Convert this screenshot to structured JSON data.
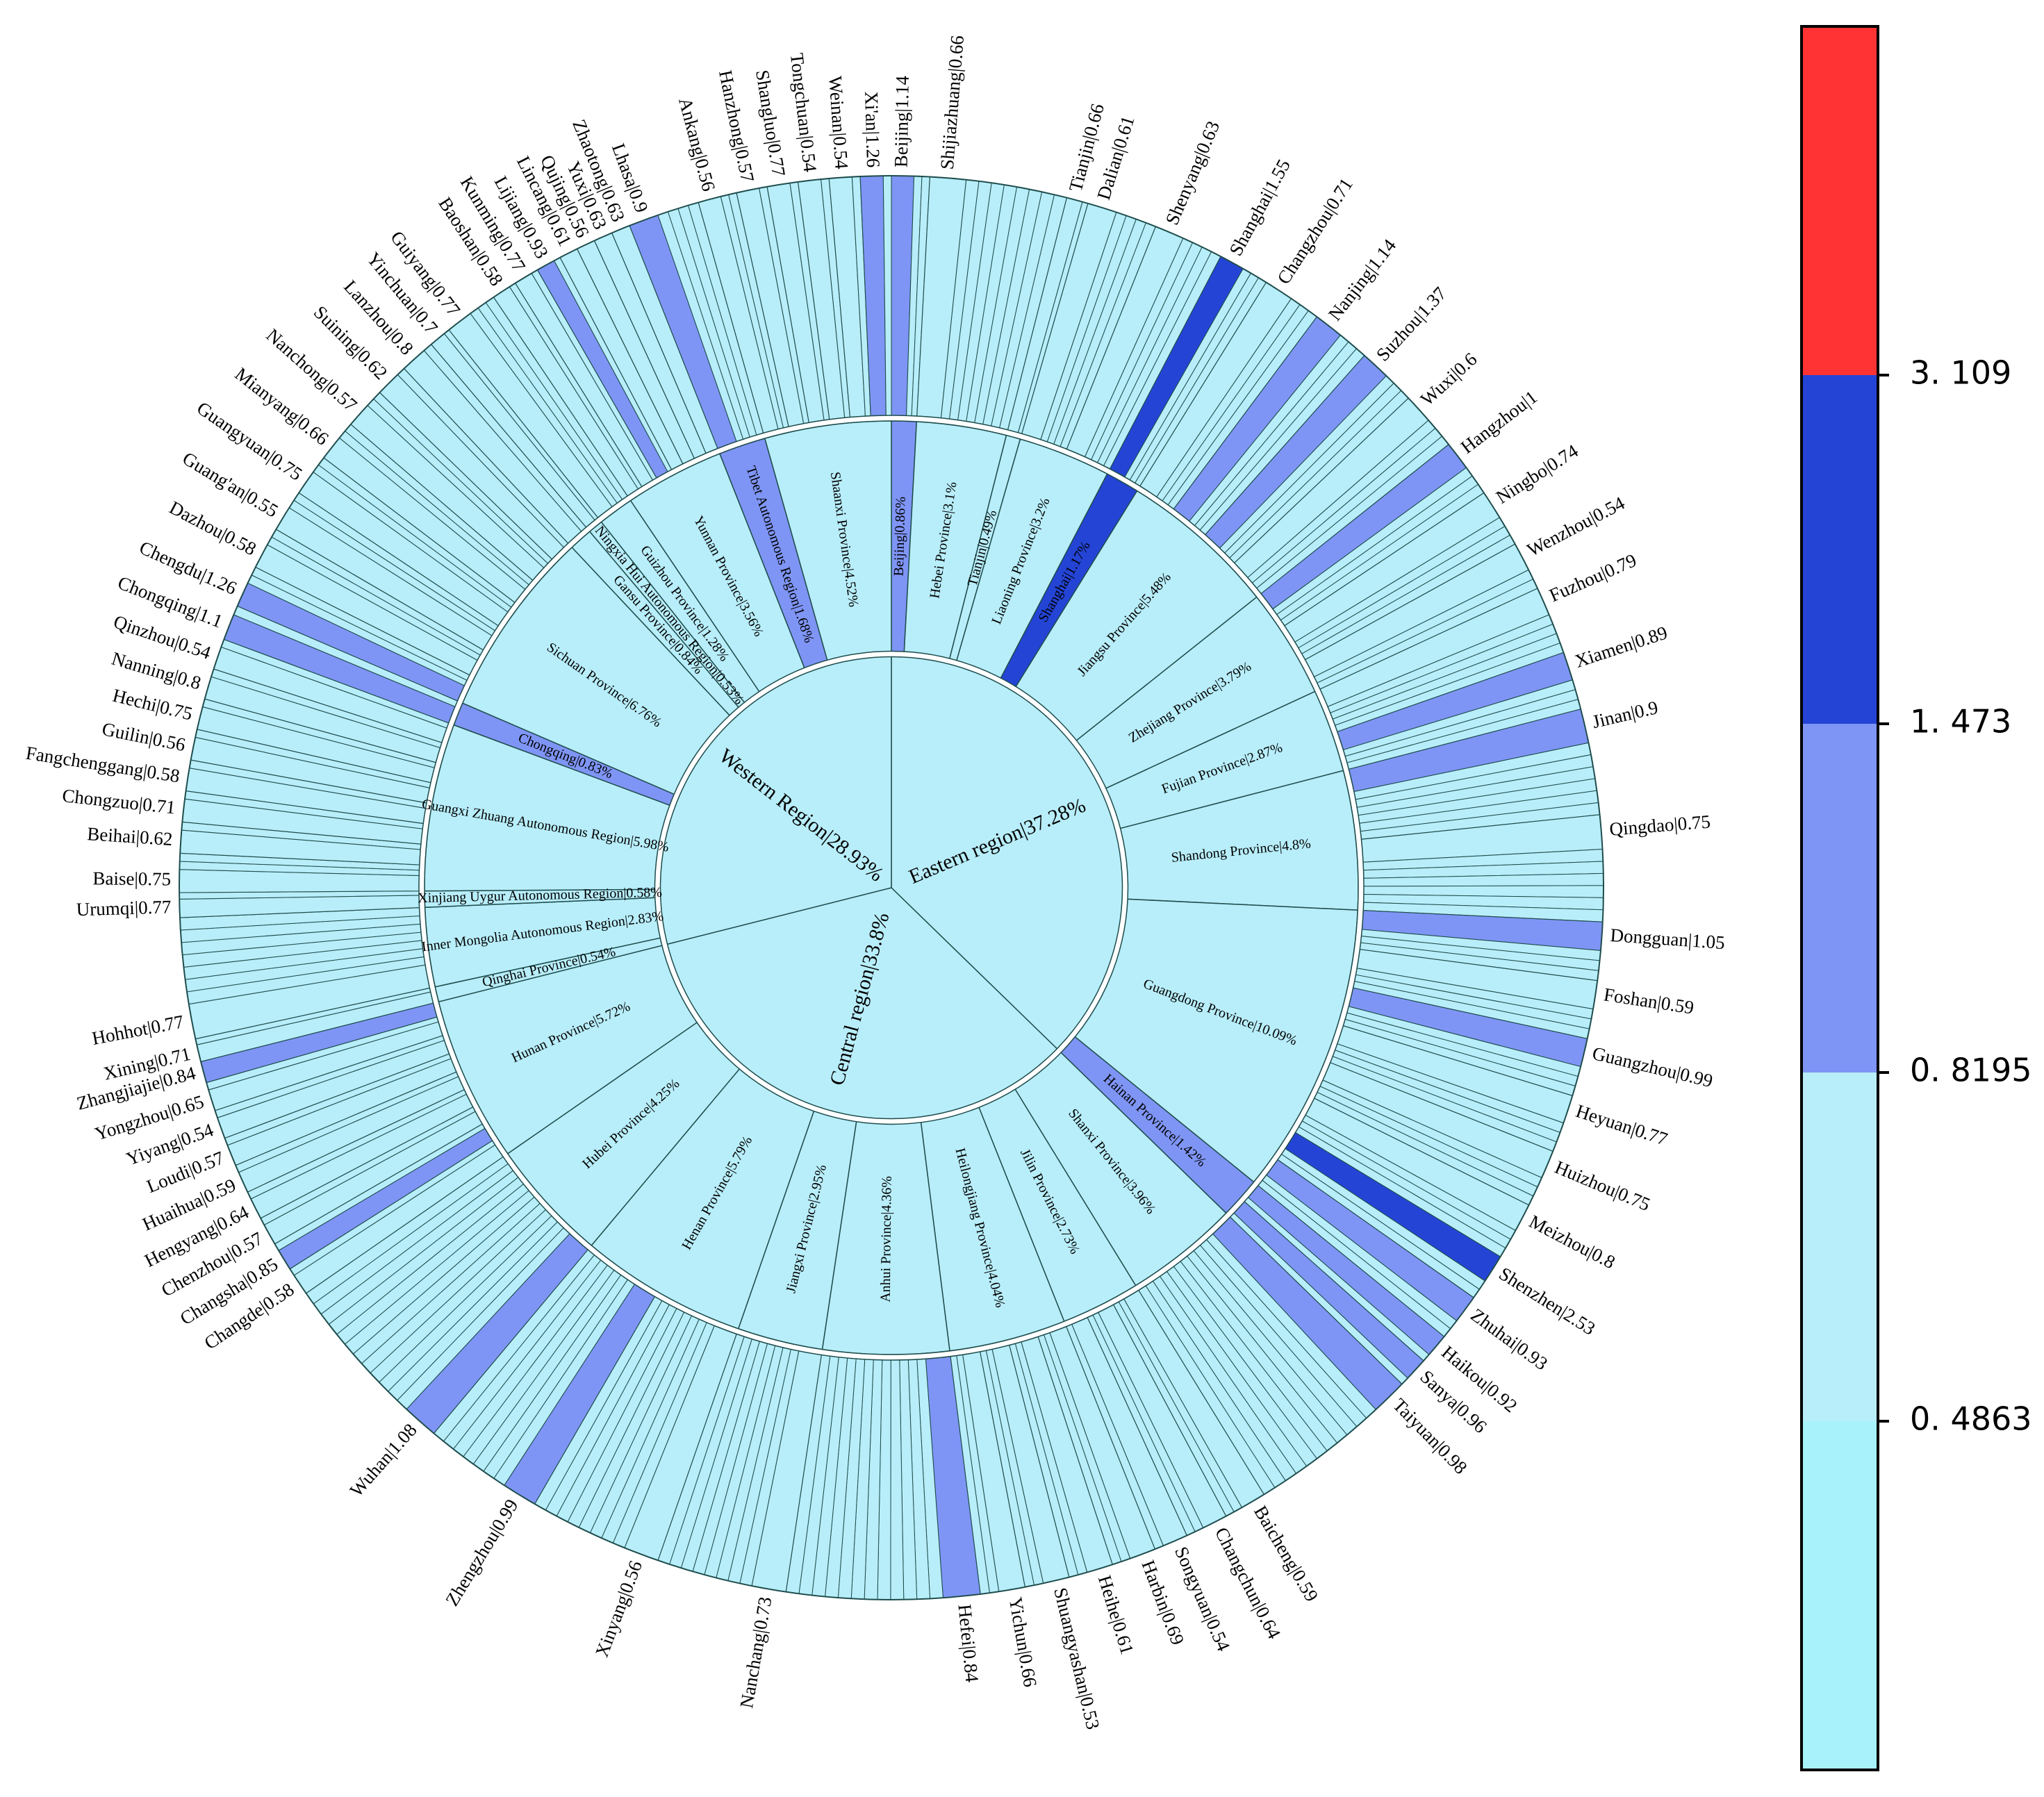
{
  "chart_data": {
    "type": "sunburst",
    "title": "",
    "colorbar": {
      "ticks": [
        0.4863,
        0.8195,
        1.473,
        3.109
      ],
      "tick_labels": [
        "0. 4863",
        "0. 8195",
        "1. 473",
        "3. 109"
      ],
      "bands": [
        {
          "from": 0.3,
          "to": 0.4863,
          "color": "#A8F3FB"
        },
        {
          "from": 0.4863,
          "to": 0.8195,
          "color": "#B8EEFA"
        },
        {
          "from": 0.8195,
          "to": 1.473,
          "color": "#7F95F5"
        },
        {
          "from": 1.473,
          "to": 3.109,
          "color": "#2444D6"
        },
        {
          "from": 3.109,
          "to": 3.6,
          "color": "#FF3333"
        }
      ]
    },
    "colors": {
      "light": "#B8EEFA",
      "cyan": "#A8F3FB",
      "mid": "#7F95F5",
      "dark": "#2444D6",
      "red": "#FF3333",
      "edge": "#1F4D4D"
    },
    "regions": [
      {
        "label": "Eastern region|37.28%",
        "share": 37.28,
        "value": 0.79,
        "provinces": [
          {
            "label": "Beijing|0.86%",
            "share": 0.86,
            "value": 1.14,
            "cities": [
              {
                "label": "Beijing|1.14",
                "value": 1.14
              }
            ]
          },
          {
            "label": "Hebei Province|3.1%",
            "share": 3.1,
            "value": 0.66,
            "cities": [
              {
                "label": "Shijiazhuang|0.66",
                "value": 0.66
              }
            ]
          },
          {
            "label": "Tianjin|0.49%",
            "share": 0.49,
            "value": 0.66,
            "cities": [
              {
                "label": "Tianjin|0.66",
                "value": 0.66
              }
            ]
          },
          {
            "label": "Liaoning Province|3.2%",
            "share": 3.2,
            "value": 0.61,
            "cities": [
              {
                "label": "Dalian|0.61",
                "value": 0.61
              },
              {
                "label": "Shenyang|0.63",
                "value": 0.63
              }
            ]
          },
          {
            "label": "Shanghai|1.17%",
            "share": 1.17,
            "value": 1.55,
            "cities": [
              {
                "label": "Shanghai|1.55",
                "value": 1.55
              }
            ]
          },
          {
            "label": "Jiangsu  Province|5.48%",
            "share": 5.48,
            "value": 0.75,
            "cities": [
              {
                "label": "Changzhou|0.71",
                "value": 0.71
              },
              {
                "label": "Nanjing|1.14",
                "value": 1.14
              },
              {
                "label": "Suzhou|1.37",
                "value": 1.37
              },
              {
                "label": "Wuxi|0.6",
                "value": 0.6
              }
            ]
          },
          {
            "label": "Zhejiang Province|3.79%",
            "share": 3.79,
            "value": 0.75,
            "cities": [
              {
                "label": "Hangzhou|1",
                "value": 1.0
              },
              {
                "label": "Ningbo|0.74",
                "value": 0.74
              },
              {
                "label": "Wenzhou|0.54",
                "value": 0.54
              }
            ]
          },
          {
            "label": "Fujian Province|2.87%",
            "share": 2.87,
            "value": 0.7,
            "cities": [
              {
                "label": "Fuzhou|0.79",
                "value": 0.79
              },
              {
                "label": "Xiamen|0.89",
                "value": 0.89
              }
            ]
          },
          {
            "label": "Shandong Province|4.8%",
            "share": 4.8,
            "value": 0.7,
            "cities": [
              {
                "label": "Jinan|0.9",
                "value": 0.9
              },
              {
                "label": "Qingdao|0.75",
                "value": 0.75
              }
            ]
          },
          {
            "label": "Guangdong Province|10.09%",
            "share": 10.09,
            "value": 0.78,
            "cities": [
              {
                "label": "Dongguan|1.05",
                "value": 1.05
              },
              {
                "label": "Foshan|0.59",
                "value": 0.59
              },
              {
                "label": "Guangzhou|0.99",
                "value": 0.99
              },
              {
                "label": "Heyuan|0.77",
                "value": 0.77
              },
              {
                "label": "Huizhou|0.75",
                "value": 0.75
              },
              {
                "label": "Meizhou|0.8",
                "value": 0.8
              },
              {
                "label": "Shenzhen|2.53",
                "value": 2.53
              },
              {
                "label": "Zhuhai|0.93",
                "value": 0.93
              }
            ]
          },
          {
            "label": "Hainan Province|1.42%",
            "share": 1.42,
            "value": 0.94,
            "cities": [
              {
                "label": "Haikou|0.92",
                "value": 0.92
              },
              {
                "label": "Sanya|0.96",
                "value": 0.96
              }
            ]
          }
        ]
      },
      {
        "label": "Central region|33.8%",
        "share": 33.8,
        "value": 0.7,
        "provinces": [
          {
            "label": "Shanxi Province|3.96%",
            "share": 3.96,
            "value": 0.7,
            "cities": [
              {
                "label": "Taiyuan|0.98",
                "value": 0.98
              }
            ]
          },
          {
            "label": "Jilin Province|2.73%",
            "share": 2.73,
            "value": 0.6,
            "cities": [
              {
                "label": "Baicheng|0.59",
                "value": 0.59
              },
              {
                "label": "Changchun|0.64",
                "value": 0.64
              },
              {
                "label": "Songyuan|0.54",
                "value": 0.54
              }
            ]
          },
          {
            "label": "Heilongjiang Province|4.04%",
            "share": 4.04,
            "value": 0.6,
            "cities": [
              {
                "label": "Harbin|0.69",
                "value": 0.69
              },
              {
                "label": "Heihe|0.61",
                "value": 0.61
              },
              {
                "label": "Shuangyashan|0.53",
                "value": 0.53
              },
              {
                "label": "Yichun|0.66",
                "value": 0.66
              }
            ]
          },
          {
            "label": "Anhui Province|4.36%",
            "share": 4.36,
            "value": 0.68,
            "cities": [
              {
                "label": "Hefei|0.84",
                "value": 0.84
              }
            ]
          },
          {
            "label": "Jiangxi Province|2.95%",
            "share": 2.95,
            "value": 0.65,
            "cities": [
              {
                "label": "Nanchang|0.73",
                "value": 0.73
              }
            ]
          },
          {
            "label": "Henan Province|5.79%",
            "share": 5.79,
            "value": 0.67,
            "cities": [
              {
                "label": "Xinyang|0.56",
                "value": 0.56
              },
              {
                "label": "Zhengzhou|0.99",
                "value": 0.99
              }
            ]
          },
          {
            "label": "Hubei Province|4.25%",
            "share": 4.25,
            "value": 0.7,
            "cities": [
              {
                "label": "Wuhan|1.08",
                "value": 1.08
              }
            ]
          },
          {
            "label": "Hunan Province|5.72%",
            "share": 5.72,
            "value": 0.66,
            "cities": [
              {
                "label": "Changde|0.58",
                "value": 0.58
              },
              {
                "label": "Changsha|0.85",
                "value": 0.85
              },
              {
                "label": "Chenzhou|0.57",
                "value": 0.57
              },
              {
                "label": "Hengyang|0.64",
                "value": 0.64
              },
              {
                "label": "Huaihua|0.59",
                "value": 0.59
              },
              {
                "label": "Loudi|0.57",
                "value": 0.57
              },
              {
                "label": "Yiyang|0.54",
                "value": 0.54
              },
              {
                "label": "Yongzhou|0.65",
                "value": 0.65
              },
              {
                "label": "Zhangjiajie|0.84",
                "value": 0.84
              }
            ]
          }
        ]
      },
      {
        "label": "Western Region|28.93%",
        "share": 28.93,
        "value": 0.72,
        "provinces": [
          {
            "label": "Qinghai Province|0.54%",
            "share": 0.54,
            "value": 0.7,
            "cities": [
              {
                "label": "Xining|0.71",
                "value": 0.71
              }
            ]
          },
          {
            "label": "Inner Mongolia Autonomous Region|2.83%",
            "share": 2.83,
            "value": 0.7,
            "cities": [
              {
                "label": "Hohhot|0.77",
                "value": 0.77
              }
            ]
          },
          {
            "label": "Xinjiang Uygur Autonomous Region|0.58%",
            "share": 0.58,
            "value": 0.72,
            "cities": [
              {
                "label": "Urumqi|0.77",
                "value": 0.77
              }
            ]
          },
          {
            "label": "Guangxi Zhuang Autonomous Region|5.98%",
            "share": 5.98,
            "value": 0.7,
            "cities": [
              {
                "label": "Baise|0.75",
                "value": 0.75
              },
              {
                "label": "Beihai|0.62",
                "value": 0.62
              },
              {
                "label": "Chongzuo|0.71",
                "value": 0.71
              },
              {
                "label": "Fangchenggang|0.58",
                "value": 0.58
              },
              {
                "label": "Guilin|0.56",
                "value": 0.56
              },
              {
                "label": "Hechi|0.75",
                "value": 0.75
              },
              {
                "label": "Nanning|0.8",
                "value": 0.8
              },
              {
                "label": "Qinzhou|0.54",
                "value": 0.54
              }
            ]
          },
          {
            "label": "Chongqing|0.83%",
            "share": 0.83,
            "value": 1.1,
            "cities": [
              {
                "label": "Chongqing|1.1",
                "value": 1.1
              }
            ]
          },
          {
            "label": "Sichuan Province|6.76%",
            "share": 6.76,
            "value": 0.72,
            "cities": [
              {
                "label": "Chengdu|1.26",
                "value": 1.26
              },
              {
                "label": "Dazhou|0.58",
                "value": 0.58
              },
              {
                "label": "Guang'an|0.55",
                "value": 0.55
              },
              {
                "label": "Guangyuan|0.75",
                "value": 0.75
              },
              {
                "label": "Mianyang|0.66",
                "value": 0.66
              },
              {
                "label": "Nanchong|0.57",
                "value": 0.57
              },
              {
                "label": "Suining|0.62",
                "value": 0.62
              }
            ]
          },
          {
            "label": "Gansu Province|0.84%",
            "share": 0.84,
            "value": 0.72,
            "cities": [
              {
                "label": "Lanzhou|0.8",
                "value": 0.8
              }
            ]
          },
          {
            "label": "Ningxia Hui Autonomous Region|0.53%",
            "share": 0.53,
            "value": 0.7,
            "cities": [
              {
                "label": "Yinchuan|0.7",
                "value": 0.7
              }
            ]
          },
          {
            "label": "Guizhou Province|1.28%",
            "share": 1.28,
            "value": 0.72,
            "cities": [
              {
                "label": "Guiyang|0.77",
                "value": 0.77
              }
            ]
          },
          {
            "label": "Yunnan Province|3.56%",
            "share": 3.56,
            "value": 0.7,
            "cities": [
              {
                "label": "Baoshan|0.58",
                "value": 0.58
              },
              {
                "label": "Kunming|0.77",
                "value": 0.77
              },
              {
                "label": "Lijiang|0.93",
                "value": 0.93
              },
              {
                "label": "Lincang|0.61",
                "value": 0.61
              },
              {
                "label": "Qujing|0.56",
                "value": 0.56
              },
              {
                "label": "Yuxi|0.63",
                "value": 0.63
              },
              {
                "label": "Zhaotong|0.63",
                "value": 0.63
              }
            ]
          },
          {
            "label": "Tibet Autonomous Region|1.68%",
            "share": 1.68,
            "value": 0.9,
            "cities": [
              {
                "label": "Lhasa|0.9",
                "value": 0.9
              }
            ]
          },
          {
            "label": "Shaanxi Province|4.52%",
            "share": 4.52,
            "value": 0.72,
            "cities": [
              {
                "label": "Ankang|0.56",
                "value": 0.56
              },
              {
                "label": "Hanzhong|0.57",
                "value": 0.57
              },
              {
                "label": "Shangluo|0.77",
                "value": 0.77
              },
              {
                "label": "Tongchuan|0.54",
                "value": 0.54
              },
              {
                "label": "Weinan|0.54",
                "value": 0.54
              },
              {
                "label": "Xi'an|1.26",
                "value": 1.26
              }
            ]
          }
        ]
      }
    ]
  }
}
